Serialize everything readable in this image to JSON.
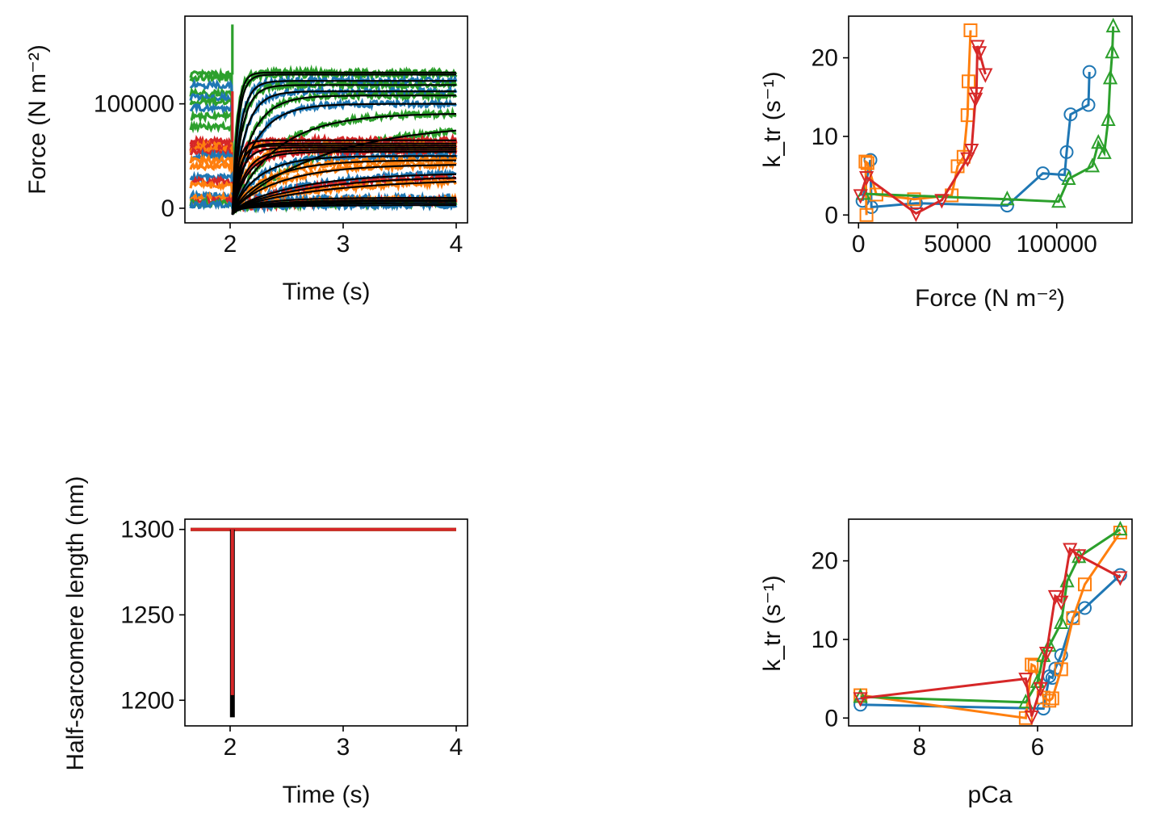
{
  "figure": {
    "colors": {
      "blue": "#1f77b4",
      "orange": "#ff7f0e",
      "green": "#2ca02c",
      "red": "#d62728",
      "fit": "#000000"
    }
  },
  "chart_data": [
    {
      "id": "force_trace",
      "type": "line",
      "xlabel": "Time (s)",
      "ylabel": "Force (N m⁻²)",
      "xlim": [
        1.6,
        4.1
      ],
      "ylim": [
        -14000,
        184000
      ],
      "xticks": [
        2,
        3,
        4
      ],
      "xtick_labels": [
        "2",
        "3",
        "4"
      ],
      "yticks": [
        0,
        100000
      ],
      "ytick_labels": [
        "0",
        "100000"
      ],
      "grid": false,
      "release_time": 2.02,
      "series_colors": [
        "#1f77b4",
        "#ff7f0e",
        "#2ca02c",
        "#d62728"
      ],
      "fit_color": "#000000",
      "traces": [
        {
          "color": "#2ca02c",
          "pre": 128000,
          "final": 130000,
          "rate": 24,
          "spike": 176000
        },
        {
          "color": "#2ca02c",
          "pre": 125000,
          "final": 128000,
          "rate": 20
        },
        {
          "color": "#1f77b4",
          "pre": 118000,
          "final": 122000,
          "rate": 14
        },
        {
          "color": "#2ca02c",
          "pre": 110000,
          "final": 118000,
          "rate": 12
        },
        {
          "color": "#1f77b4",
          "pre": 106000,
          "final": 112000,
          "rate": 9
        },
        {
          "color": "#2ca02c",
          "pre": 102000,
          "final": 108000,
          "rate": 6
        },
        {
          "color": "#1f77b4",
          "pre": 96000,
          "final": 100000,
          "rate": 5
        },
        {
          "color": "#2ca02c",
          "pre": 88000,
          "final": 91000,
          "rate": 2.5
        },
        {
          "color": "#2ca02c",
          "pre": 78000,
          "final": 82000,
          "rate": 1.2
        },
        {
          "color": "#d62728",
          "pre": 64000,
          "final": 65000,
          "rate": 20,
          "spike": 112000
        },
        {
          "color": "#d62728",
          "pre": 62000,
          "final": 62000,
          "rate": 15
        },
        {
          "color": "#ff7f0e",
          "pre": 60000,
          "final": 60000,
          "rate": 17
        },
        {
          "color": "#d62728",
          "pre": 58000,
          "final": 58000,
          "rate": 12
        },
        {
          "color": "#ff7f0e",
          "pre": 56000,
          "final": 56000,
          "rate": 8
        },
        {
          "color": "#d62728",
          "pre": 54000,
          "final": 54000,
          "rate": 7
        },
        {
          "color": "#1f77b4",
          "pre": 50000,
          "final": 50000,
          "rate": 4
        },
        {
          "color": "#ff7f0e",
          "pre": 46000,
          "final": 46000,
          "rate": 3
        },
        {
          "color": "#ff7f0e",
          "pre": 40000,
          "final": 42000,
          "rate": 2.2
        },
        {
          "color": "#1f77b4",
          "pre": 30000,
          "final": 34000,
          "rate": 1.6
        },
        {
          "color": "#d62728",
          "pre": 26000,
          "final": 31000,
          "rate": 1.4
        },
        {
          "color": "#ff7f0e",
          "pre": 22000,
          "final": 28000,
          "rate": 1.2
        },
        {
          "color": "#1f77b4",
          "pre": 12000,
          "final": 10000,
          "rate": 3
        },
        {
          "color": "#ff7f0e",
          "pre": 10000,
          "final": 8000,
          "rate": 2.5
        },
        {
          "color": "#d62728",
          "pre": 7000,
          "final": 7000,
          "rate": 2
        },
        {
          "color": "#2ca02c",
          "pre": 5000,
          "final": 5000,
          "rate": 2
        },
        {
          "color": "#1f77b4",
          "pre": 3000,
          "final": 3000,
          "rate": 2
        }
      ]
    },
    {
      "id": "ktr_vs_force",
      "type": "line",
      "xlabel": "Force (N m⁻²)",
      "ylabel": "k_tr (s⁻¹)",
      "xlim": [
        -5000,
        138000
      ],
      "ylim": [
        -1,
        25.3
      ],
      "xticks": [
        0,
        50000,
        100000
      ],
      "xtick_labels": [
        "0",
        "50000",
        "100000"
      ],
      "yticks": [
        0,
        10,
        20
      ],
      "ytick_labels": [
        "0",
        "10",
        "20"
      ],
      "grid": false,
      "series": [
        {
          "color": "#1f77b4",
          "marker": "circle",
          "points": [
            [
              2000,
              1.8
            ],
            [
              6000,
              7.0
            ],
            [
              6500,
              1.0
            ],
            [
              29000,
              1.5
            ],
            [
              75000,
              1.2
            ],
            [
              93000,
              5.3
            ],
            [
              104000,
              5.1
            ],
            [
              105000,
              8.0
            ],
            [
              107000,
              12.8
            ],
            [
              116000,
              14.0
            ],
            [
              116500,
              18.2
            ]
          ]
        },
        {
          "color": "#ff7f0e",
          "marker": "square",
          "points": [
            [
              4000,
              0.0
            ],
            [
              3500,
              6.8
            ],
            [
              4500,
              6.6
            ],
            [
              9000,
              2.6
            ],
            [
              28000,
              2.0
            ],
            [
              47000,
              2.5
            ],
            [
              50000,
              6.2
            ],
            [
              53000,
              7.4
            ],
            [
              55000,
              12.7
            ],
            [
              55500,
              17.0
            ],
            [
              56500,
              23.5
            ]
          ]
        },
        {
          "color": "#2ca02c",
          "marker": "triangle-up",
          "points": [
            [
              2500,
              2.7
            ],
            [
              75000,
              2.0
            ],
            [
              101000,
              1.7
            ],
            [
              106000,
              4.6
            ],
            [
              118000,
              6.2
            ],
            [
              121000,
              9.2
            ],
            [
              124000,
              7.9
            ],
            [
              126000,
              12.1
            ],
            [
              127000,
              17.4
            ],
            [
              128000,
              20.7
            ],
            [
              128500,
              24.0
            ]
          ]
        },
        {
          "color": "#d62728",
          "marker": "triangle-down",
          "points": [
            [
              1000,
              2.5
            ],
            [
              4000,
              4.8
            ],
            [
              29000,
              0.2
            ],
            [
              42000,
              1.9
            ],
            [
              55000,
              7.2
            ],
            [
              57000,
              8.3
            ],
            [
              59000,
              14.8
            ],
            [
              59500,
              15.5
            ],
            [
              60000,
              21.5
            ],
            [
              61000,
              20.7
            ],
            [
              64000,
              17.9
            ]
          ]
        }
      ]
    },
    {
      "id": "hs_length_trace",
      "type": "line",
      "xlabel": "Time (s)",
      "ylabel": "Half-sarcomere length (nm)",
      "xlim": [
        1.6,
        4.1
      ],
      "ylim": [
        1185,
        1306
      ],
      "xticks": [
        2,
        3,
        4
      ],
      "xtick_labels": [
        "2",
        "3",
        "4"
      ],
      "yticks": [
        1200,
        1250,
        1300
      ],
      "ytick_labels": [
        "1200",
        "1250",
        "1300"
      ],
      "grid": false,
      "baseline": 1300,
      "release_time": 2.02,
      "release_min": 1190,
      "red_dip_min": 1203,
      "series_colors": [
        "#1f77b4",
        "#ff7f0e",
        "#2ca02c",
        "#d62728"
      ],
      "fit_color": "#000000"
    },
    {
      "id": "ktr_vs_pca",
      "type": "line",
      "xlabel": "pCa",
      "ylabel": "k_tr (s⁻¹)",
      "xlim": [
        9.2,
        4.4
      ],
      "ylim": [
        -1,
        25.3
      ],
      "xticks": [
        8,
        6
      ],
      "xtick_labels": [
        "8",
        "6"
      ],
      "yticks": [
        0,
        10,
        20
      ],
      "ytick_labels": [
        "0",
        "10",
        "20"
      ],
      "grid": false,
      "x_inverted": true,
      "series": [
        {
          "color": "#1f77b4",
          "marker": "circle",
          "points": [
            [
              9.0,
              1.7
            ],
            [
              5.9,
              1.2
            ],
            [
              5.8,
              5.3
            ],
            [
              5.75,
              5.1
            ],
            [
              5.7,
              6.3
            ],
            [
              5.6,
              8.0
            ],
            [
              5.4,
              12.8
            ],
            [
              5.2,
              14.0
            ],
            [
              4.6,
              18.2
            ]
          ]
        },
        {
          "color": "#ff7f0e",
          "marker": "square",
          "points": [
            [
              9.0,
              2.9
            ],
            [
              6.2,
              0.0
            ],
            [
              6.1,
              6.8
            ],
            [
              6.05,
              6.6
            ],
            [
              5.9,
              2.6
            ],
            [
              5.8,
              2.2
            ],
            [
              5.75,
              2.5
            ],
            [
              5.6,
              6.2
            ],
            [
              5.4,
              12.7
            ],
            [
              5.2,
              17.0
            ],
            [
              4.6,
              23.6
            ]
          ]
        },
        {
          "color": "#2ca02c",
          "marker": "triangle-up",
          "points": [
            [
              9.0,
              2.7
            ],
            [
              6.2,
              2.0
            ],
            [
              6.0,
              4.6
            ],
            [
              5.9,
              7.9
            ],
            [
              5.8,
              9.2
            ],
            [
              5.6,
              12.1
            ],
            [
              5.5,
              17.4
            ],
            [
              5.3,
              20.5
            ],
            [
              4.6,
              24.0
            ]
          ]
        },
        {
          "color": "#d62728",
          "marker": "triangle-down",
          "points": [
            [
              9.0,
              2.5
            ],
            [
              6.2,
              5.0
            ],
            [
              6.1,
              0.2
            ],
            [
              5.95,
              3.8
            ],
            [
              5.85,
              8.3
            ],
            [
              5.7,
              15.5
            ],
            [
              5.6,
              14.8
            ],
            [
              5.45,
              21.5
            ],
            [
              5.3,
              20.7
            ],
            [
              4.6,
              17.9
            ]
          ]
        }
      ]
    }
  ]
}
